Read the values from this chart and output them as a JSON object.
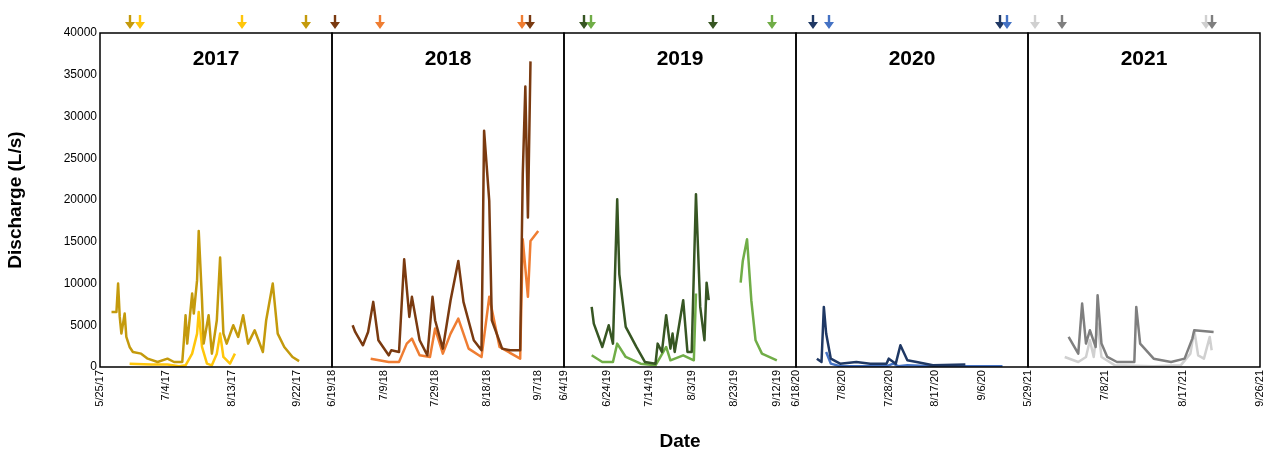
{
  "chart_data": [
    {
      "type": "line",
      "title": "2017",
      "ylabel": "Discharge (L/s)",
      "xlim": [
        "2017-05-25",
        "2017-10-13"
      ],
      "ylim": [
        0,
        40000
      ],
      "xticks": [
        {
          "value": "2017-05-25",
          "label": "5/25/17"
        },
        {
          "value": "2017-07-04",
          "label": "7/4/17"
        },
        {
          "value": "2017-08-13",
          "label": "8/13/17"
        },
        {
          "value": "2017-09-22",
          "label": "9/22/17"
        }
      ],
      "yticks": [
        0,
        5000,
        10000,
        15000,
        20000,
        25000,
        30000,
        35000,
        40000
      ],
      "series": [
        {
          "color": "#c49a0c",
          "x": [
            "2017-06-01",
            "2017-06-04",
            "2017-06-05",
            "2017-06-06",
            "2017-06-07",
            "2017-06-09",
            "2017-06-10",
            "2017-06-12",
            "2017-06-14",
            "2017-06-19",
            "2017-06-23",
            "2017-06-29",
            "2017-07-05",
            "2017-07-09",
            "2017-07-14",
            "2017-07-15",
            "2017-07-16",
            "2017-07-17",
            "2017-07-20",
            "2017-07-21",
            "2017-07-23",
            "2017-07-24",
            "2017-07-26",
            "2017-07-27",
            "2017-07-30",
            "2017-08-01",
            "2017-08-04",
            "2017-08-06",
            "2017-08-08",
            "2017-08-10",
            "2017-08-14",
            "2017-08-17",
            "2017-08-20",
            "2017-08-23",
            "2017-08-27",
            "2017-09-01",
            "2017-09-03",
            "2017-09-07",
            "2017-09-10",
            "2017-09-14",
            "2017-09-19",
            "2017-09-23"
          ],
          "values": [
            6600,
            6600,
            10000,
            6000,
            4000,
            6400,
            3600,
            2400,
            1800,
            1600,
            1000,
            600,
            1000,
            600,
            600,
            3200,
            6200,
            2800,
            8800,
            6400,
            10400,
            16300,
            8000,
            2800,
            6200,
            1600,
            5600,
            13100,
            4000,
            2800,
            5000,
            3600,
            6200,
            2800,
            4400,
            1800,
            5600,
            10000,
            4000,
            2400,
            1200,
            700
          ]
        },
        {
          "color": "#ffc60a",
          "x": [
            "2017-06-12",
            "2017-06-25",
            "2017-07-05",
            "2017-07-12",
            "2017-07-16",
            "2017-07-20",
            "2017-07-23",
            "2017-07-24",
            "2017-07-26",
            "2017-07-29",
            "2017-08-01",
            "2017-08-04",
            "2017-08-06",
            "2017-08-08",
            "2017-08-12",
            "2017-08-15"
          ],
          "values": [
            400,
            300,
            300,
            100,
            200,
            1600,
            4000,
            6600,
            2400,
            400,
            200,
            1600,
            4000,
            1200,
            400,
            1600
          ]
        }
      ]
    },
    {
      "type": "line",
      "title": "2018",
      "tick_labels": "x",
      "xlim": [
        "2018-06-19",
        "2018-09-17"
      ],
      "ylim": [
        0,
        40000
      ],
      "xticks": [
        {
          "value": "2018-06-19",
          "label": "6/19/18"
        },
        {
          "value": "2018-07-09",
          "label": "7/9/18"
        },
        {
          "value": "2018-07-29",
          "label": "7/29/18"
        },
        {
          "value": "2018-08-18",
          "label": "8/18/18"
        },
        {
          "value": "2018-09-07",
          "label": "9/7/18"
        }
      ],
      "yticks": [
        0,
        5000,
        10000,
        15000,
        20000,
        25000,
        30000,
        35000,
        40000
      ],
      "series": [
        {
          "color": "#7a3a10",
          "x": [
            "2018-06-27",
            "2018-06-28",
            "2018-07-01",
            "2018-07-03",
            "2018-07-05",
            "2018-07-07",
            "2018-07-11",
            "2018-07-12",
            "2018-07-15",
            "2018-07-17",
            "2018-07-19",
            "2018-07-20",
            "2018-07-23",
            "2018-07-26",
            "2018-07-28",
            "2018-07-29",
            "2018-08-01",
            "2018-08-04",
            "2018-08-07",
            "2018-08-09",
            "2018-08-13",
            "2018-08-16",
            "2018-08-17",
            "2018-08-19",
            "2018-08-20",
            "2018-08-24",
            "2018-08-27",
            "2018-08-31",
            "2018-09-01",
            "2018-09-02",
            "2018-09-03",
            "2018-09-04"
          ],
          "values": [
            5000,
            4200,
            2600,
            4200,
            7800,
            3200,
            1400,
            2000,
            1800,
            12900,
            6000,
            8400,
            3200,
            1400,
            8400,
            5600,
            2200,
            8000,
            12700,
            7800,
            3200,
            2000,
            28300,
            19900,
            5600,
            2200,
            2000,
            2000,
            23100,
            33600,
            17900,
            36600
          ]
        },
        {
          "color": "#ef7d32",
          "x": [
            "2018-07-04",
            "2018-07-11",
            "2018-07-15",
            "2018-07-18",
            "2018-07-20",
            "2018-07-23",
            "2018-07-27",
            "2018-07-29",
            "2018-08-01",
            "2018-08-04",
            "2018-08-07",
            "2018-08-11",
            "2018-08-16",
            "2018-08-19",
            "2018-08-23",
            "2018-08-31",
            "2018-09-01",
            "2018-09-03",
            "2018-09-04",
            "2018-09-07"
          ],
          "values": [
            1000,
            600,
            600,
            2800,
            3400,
            1400,
            1200,
            4600,
            1600,
            4000,
            5800,
            2200,
            1200,
            8400,
            2400,
            1000,
            15300,
            8400,
            15100,
            16300
          ]
        }
      ]
    },
    {
      "type": "line",
      "title": "2019",
      "xlabel": "Date",
      "tick_labels": "x",
      "xlim": [
        "2019-06-04",
        "2019-09-21"
      ],
      "ylim": [
        0,
        40000
      ],
      "xticks": [
        {
          "value": "2019-06-04",
          "label": "6/4/19"
        },
        {
          "value": "2019-06-24",
          "label": "6/24/19"
        },
        {
          "value": "2019-07-14",
          "label": "7/14/19"
        },
        {
          "value": "2019-08-03",
          "label": "8/3/19"
        },
        {
          "value": "2019-08-23",
          "label": "8/23/19"
        },
        {
          "value": "2019-09-12",
          "label": "9/12/19"
        }
      ],
      "yticks": [
        0,
        5000,
        10000,
        15000,
        20000,
        25000,
        30000,
        35000,
        40000
      ],
      "series": [
        {
          "color": "#375623",
          "x": [
            "2019-06-17",
            "2019-06-18",
            "2019-06-22",
            "2019-06-25",
            "2019-06-27",
            "2019-06-29",
            "2019-06-30",
            "2019-07-03",
            "2019-07-08",
            "2019-07-12",
            "2019-07-17",
            "2019-07-18",
            "2019-07-20",
            "2019-07-22",
            "2019-07-24",
            "2019-07-25",
            "2019-07-26",
            "2019-07-30",
            "2019-08-01",
            "2019-08-03",
            "2019-08-05",
            "2019-08-07",
            "2019-08-09",
            "2019-08-10",
            "2019-08-11"
          ],
          "values": [
            7200,
            5200,
            2400,
            5000,
            2800,
            20100,
            11100,
            4800,
            2400,
            600,
            400,
            2800,
            1800,
            6200,
            2200,
            4000,
            1800,
            8000,
            1800,
            1800,
            20700,
            7200,
            3200,
            10100,
            8000
          ]
        },
        {
          "color": "#70ad47",
          "x": [
            "2019-06-17",
            "2019-06-22",
            "2019-06-27",
            "2019-06-29",
            "2019-07-03",
            "2019-07-10",
            "2019-07-17",
            "2019-07-22",
            "2019-07-24",
            "2019-07-30",
            "2019-08-04",
            "2019-08-05",
            "2019-08-15",
            "2019-08-26",
            "2019-08-27",
            "2019-08-29",
            "2019-08-31",
            "2019-09-02",
            "2019-09-05",
            "2019-09-12"
          ],
          "values": [
            1400,
            600,
            600,
            2800,
            1200,
            400,
            200,
            2400,
            800,
            1400,
            800,
            8800,
            null,
            10100,
            12700,
            15300,
            8000,
            3200,
            1600,
            800
          ]
        }
      ]
    },
    {
      "type": "line",
      "title": "2020",
      "tick_labels": "x",
      "xlim": [
        "2020-06-18",
        "2020-09-26"
      ],
      "ylim": [
        0,
        40000
      ],
      "xticks": [
        {
          "value": "2020-06-18",
          "label": "6/18/20"
        },
        {
          "value": "2020-07-08",
          "label": "7/8/20"
        },
        {
          "value": "2020-07-28",
          "label": "7/28/20"
        },
        {
          "value": "2020-08-17",
          "label": "8/17/20"
        },
        {
          "value": "2020-09-06",
          "label": "9/6/20"
        }
      ],
      "yticks": [
        0,
        5000,
        10000,
        15000,
        20000,
        25000,
        30000,
        35000,
        40000
      ],
      "series": [
        {
          "color": "#1f3864",
          "x": [
            "2020-06-27",
            "2020-06-29",
            "2020-06-30",
            "2020-07-01",
            "2020-07-03",
            "2020-07-07",
            "2020-07-14",
            "2020-07-20",
            "2020-07-27",
            "2020-07-28",
            "2020-07-31",
            "2020-08-02",
            "2020-08-05",
            "2020-08-09",
            "2020-08-16",
            "2020-08-30"
          ],
          "values": [
            1000,
            600,
            7200,
            4000,
            1000,
            400,
            600,
            400,
            400,
            1000,
            400,
            2600,
            800,
            600,
            200,
            300
          ]
        },
        {
          "color": "#4472c4",
          "x": [
            "2020-07-01",
            "2020-07-03",
            "2020-07-07",
            "2020-07-27",
            "2020-07-30",
            "2020-08-01",
            "2020-08-05",
            "2020-08-16",
            "2020-08-31",
            "2020-09-15"
          ],
          "values": [
            1800,
            400,
            100,
            100,
            400,
            100,
            200,
            100,
            100,
            100
          ]
        }
      ]
    },
    {
      "type": "line",
      "title": "2021",
      "tick_labels": "x",
      "xlim": [
        "2021-05-29",
        "2021-09-26"
      ],
      "ylim": [
        0,
        40000
      ],
      "xticks": [
        {
          "value": "2021-05-29",
          "label": "5/29/21"
        },
        {
          "value": "2021-07-08",
          "label": "7/8/21"
        },
        {
          "value": "2021-08-17",
          "label": "8/17/21"
        },
        {
          "value": "2021-09-26",
          "label": "9/26/21"
        }
      ],
      "yticks": [
        0,
        5000,
        10000,
        15000,
        20000,
        25000,
        30000,
        35000,
        40000
      ],
      "series": [
        {
          "color": "#7f7f7f",
          "x": [
            "2021-06-19",
            "2021-06-24",
            "2021-06-26",
            "2021-06-28",
            "2021-06-30",
            "2021-07-03",
            "2021-07-04",
            "2021-07-06",
            "2021-07-09",
            "2021-07-14",
            "2021-07-23",
            "2021-07-24",
            "2021-07-26",
            "2021-08-02",
            "2021-08-11",
            "2021-08-18",
            "2021-08-22",
            "2021-08-23",
            "2021-09-02"
          ],
          "values": [
            3600,
            1600,
            7600,
            2800,
            4400,
            2400,
            8600,
            2800,
            1200,
            600,
            600,
            7200,
            2800,
            1000,
            600,
            1000,
            3400,
            4400,
            4200
          ]
        },
        {
          "color": "#d0d0d0",
          "x": [
            "2021-06-17",
            "2021-06-24",
            "2021-06-28",
            "2021-06-30",
            "2021-07-02",
            "2021-07-04",
            "2021-07-06",
            "2021-07-13",
            "2021-08-02",
            "2021-08-16",
            "2021-08-21",
            "2021-08-23",
            "2021-08-25",
            "2021-08-28",
            "2021-08-31",
            "2021-09-01"
          ],
          "values": [
            1200,
            600,
            1200,
            3200,
            1200,
            5200,
            1200,
            200,
            100,
            200,
            1600,
            4400,
            1400,
            1000,
            3600,
            2000
          ]
        }
      ]
    }
  ]
}
